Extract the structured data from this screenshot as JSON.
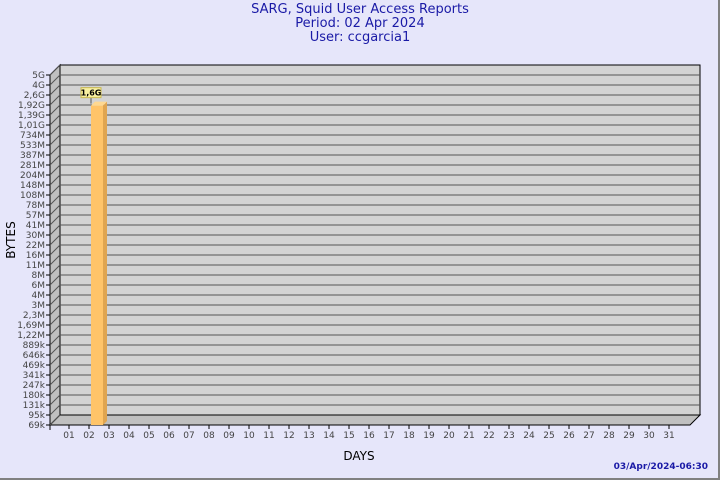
{
  "chart_data": {
    "type": "bar",
    "title": "SARG, Squid User Access Reports",
    "subtitle": [
      "Period: 02 Apr 2024",
      "User: ccgarcia1"
    ],
    "xlabel": "DAYS",
    "ylabel": "BYTES",
    "yscale": "log",
    "grid": true,
    "yticks": [
      "5G",
      "4G",
      "2,6G",
      "1,92G",
      "1,39G",
      "1,01G",
      "734M",
      "533M",
      "387M",
      "281M",
      "204M",
      "148M",
      "108M",
      "78M",
      "57M",
      "41M",
      "30M",
      "22M",
      "16M",
      "11M",
      "8M",
      "6M",
      "4M",
      "3M",
      "2,3M",
      "1,69M",
      "1,22M",
      "889k",
      "646k",
      "469k",
      "341k",
      "247k",
      "180k",
      "131k",
      "95k",
      "69k"
    ],
    "categories": [
      "01",
      "02",
      "03",
      "04",
      "05",
      "06",
      "07",
      "08",
      "09",
      "10",
      "11",
      "12",
      "13",
      "14",
      "15",
      "16",
      "17",
      "18",
      "19",
      "20",
      "21",
      "22",
      "23",
      "24",
      "25",
      "26",
      "27",
      "28",
      "29",
      "30",
      "31"
    ],
    "series": [
      {
        "values": [
          null,
          1600000000.0,
          null,
          null,
          null,
          null,
          null,
          null,
          null,
          null,
          null,
          null,
          null,
          null,
          null,
          null,
          null,
          null,
          null,
          null,
          null,
          null,
          null,
          null,
          null,
          null,
          null,
          null,
          null,
          null,
          null
        ],
        "labels": {
          "02": "1,6G"
        }
      }
    ],
    "colors": {
      "bar": "#ffc469",
      "bar_side": "#e0a550",
      "plot": "#d3d3d3",
      "wall": "#c0c0c0",
      "title": "#1a1aa6",
      "background": "#e6e6fa"
    }
  },
  "footer": {
    "timestamp": "03/Apr/2024-06:30"
  }
}
